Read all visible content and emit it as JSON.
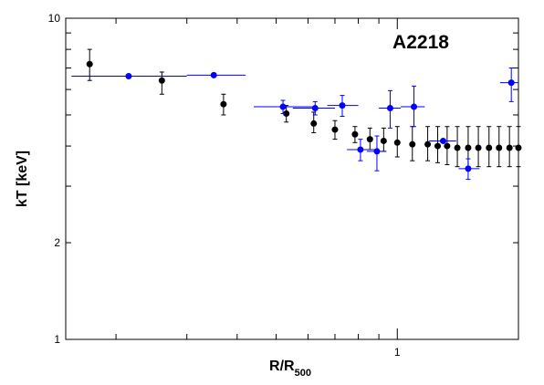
{
  "chart_data": {
    "type": "scatter",
    "title": "A2218",
    "xlabel": "R/R",
    "xlabel_sub": "500",
    "ylabel": "kT [keV]",
    "xscale": "log",
    "yscale": "log",
    "xlim": [
      0.15,
      2.0
    ],
    "ylim": [
      1,
      10
    ],
    "x_tick_labels": [
      {
        "value": 1,
        "label": "1"
      }
    ],
    "y_tick_labels": [
      {
        "value": 1,
        "label": "1"
      },
      {
        "value": 2,
        "label": "2"
      },
      {
        "value": 10,
        "label": "10"
      }
    ],
    "grid": false,
    "legend": "none",
    "series": [
      {
        "color": "#000000",
        "marker": "circle",
        "points": [
          {
            "x": 0.172,
            "y": 7.2,
            "ylo": 6.4,
            "yhi": 8.0
          },
          {
            "x": 0.26,
            "y": 6.4,
            "ylo": 5.8,
            "yhi": 6.8
          },
          {
            "x": 0.37,
            "y": 5.4,
            "ylo": 5.0,
            "yhi": 5.8
          },
          {
            "x": 0.53,
            "y": 5.05,
            "ylo": 4.75,
            "yhi": 5.35
          },
          {
            "x": 0.62,
            "y": 4.7,
            "ylo": 4.4,
            "yhi": 5.1
          },
          {
            "x": 0.7,
            "y": 4.5,
            "ylo": 4.2,
            "yhi": 4.8
          },
          {
            "x": 0.785,
            "y": 4.35,
            "ylo": 4.1,
            "yhi": 4.6
          },
          {
            "x": 0.855,
            "y": 4.2,
            "ylo": 3.9,
            "yhi": 4.55
          },
          {
            "x": 0.925,
            "y": 4.15,
            "ylo": 3.85,
            "yhi": 4.55
          },
          {
            "x": 1.0,
            "y": 4.1,
            "ylo": 3.7,
            "yhi": 4.6
          },
          {
            "x": 1.09,
            "y": 4.05,
            "ylo": 3.6,
            "yhi": 4.6
          },
          {
            "x": 1.19,
            "y": 4.05,
            "ylo": 3.6,
            "yhi": 4.6
          },
          {
            "x": 1.26,
            "y": 4.0,
            "ylo": 3.55,
            "yhi": 4.6
          },
          {
            "x": 1.33,
            "y": 4.0,
            "ylo": 3.5,
            "yhi": 4.6
          },
          {
            "x": 1.41,
            "y": 3.95,
            "ylo": 3.45,
            "yhi": 4.6
          },
          {
            "x": 1.5,
            "y": 3.95,
            "ylo": 3.45,
            "yhi": 4.6
          },
          {
            "x": 1.59,
            "y": 3.95,
            "ylo": 3.45,
            "yhi": 4.6
          },
          {
            "x": 1.69,
            "y": 3.95,
            "ylo": 3.45,
            "yhi": 4.6
          },
          {
            "x": 1.79,
            "y": 3.95,
            "ylo": 3.45,
            "yhi": 4.6
          },
          {
            "x": 1.9,
            "y": 3.95,
            "ylo": 3.45,
            "yhi": 4.6
          },
          {
            "x": 2.0,
            "y": 3.95,
            "ylo": 3.45,
            "yhi": 4.6
          }
        ]
      },
      {
        "color": "#0000ff",
        "marker": "circle",
        "points": [
          {
            "x": 0.215,
            "y": 6.6,
            "xlo": 0.155,
            "xhi": 0.3
          },
          {
            "x": 0.35,
            "y": 6.65,
            "xlo": 0.3,
            "xhi": 0.42
          },
          {
            "x": 0.52,
            "y": 5.3,
            "xlo": 0.44,
            "xhi": 0.62,
            "ylo": 5.05,
            "yhi": 5.55
          },
          {
            "x": 0.625,
            "y": 5.25,
            "xlo": 0.55,
            "xhi": 0.7,
            "ylo": 5.0,
            "yhi": 5.5
          },
          {
            "x": 0.73,
            "y": 5.35,
            "xlo": 0.67,
            "xhi": 0.8,
            "ylo": 4.95,
            "yhi": 5.75
          },
          {
            "x": 0.81,
            "y": 3.9,
            "xlo": 0.75,
            "xhi": 0.88,
            "ylo": 3.6,
            "yhi": 4.2
          },
          {
            "x": 0.89,
            "y": 3.85,
            "xlo": 0.84,
            "xhi": 0.94,
            "ylo": 3.35,
            "yhi": 4.3
          },
          {
            "x": 0.96,
            "y": 5.25,
            "xlo": 0.9,
            "xhi": 1.02,
            "ylo": 4.55,
            "yhi": 5.95
          },
          {
            "x": 1.1,
            "y": 5.3,
            "xlo": 1.02,
            "xhi": 1.17,
            "ylo": 4.6,
            "yhi": 6.15
          },
          {
            "x": 1.3,
            "y": 4.15,
            "xlo": 1.2,
            "xhi": 1.4
          },
          {
            "x": 1.5,
            "y": 3.4,
            "xlo": 1.42,
            "xhi": 1.6,
            "ylo": 3.15,
            "yhi": 3.65
          },
          {
            "x": 1.92,
            "y": 6.3,
            "xlo": 1.8,
            "xhi": 2.0,
            "ylo": 5.5,
            "yhi": 7.0
          }
        ]
      }
    ]
  }
}
